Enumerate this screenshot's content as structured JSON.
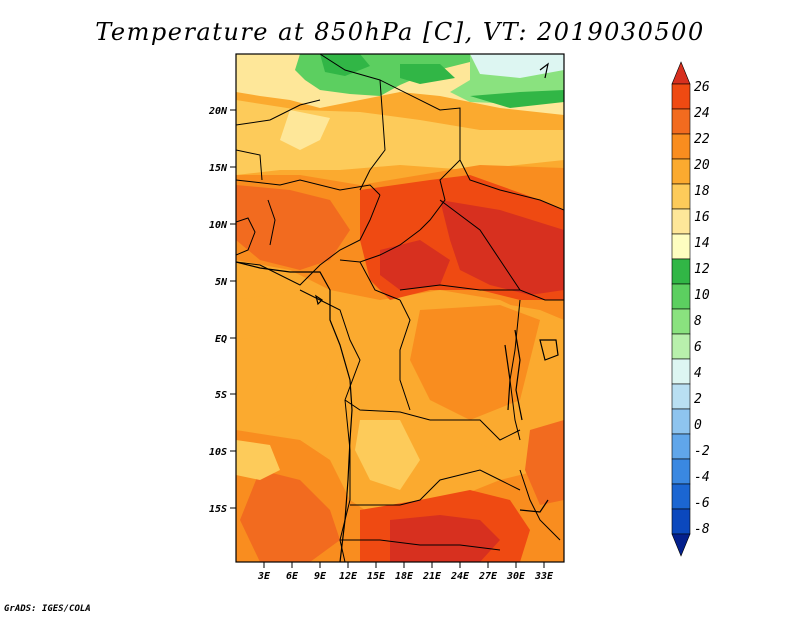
{
  "title": "Temperature at 850hPa [C], VT: 2019030500",
  "credit": "GrADS: IGES/COLA",
  "map": {
    "lat_labels": [
      "20N",
      "15N",
      "10N",
      "5N",
      "EQ",
      "5S",
      "10S",
      "15S"
    ],
    "lon_labels": [
      "3E",
      "6E",
      "9E",
      "12E",
      "15E",
      "18E",
      "21E",
      "24E",
      "27E",
      "30E",
      "33E"
    ]
  },
  "colorbar": {
    "labels": [
      "26",
      "24",
      "22",
      "20",
      "18",
      "16",
      "14",
      "12",
      "10",
      "8",
      "6",
      "4",
      "2",
      "0",
      "-2",
      "-4",
      "-6",
      "-8"
    ],
    "colors": [
      "#d7301f",
      "#ef4a12",
      "#f26b1f",
      "#f98d1f",
      "#fbaa2f",
      "#fdcb5a",
      "#fee799",
      "#fefec0",
      "#31b646",
      "#5ccf60",
      "#8ae27f",
      "#b8f0ac",
      "#ddf6f2",
      "#b9dff2",
      "#8ec4ef",
      "#60a6ea",
      "#3a88e1",
      "#1b66d2",
      "#0b48bd",
      "#04208d"
    ]
  }
}
